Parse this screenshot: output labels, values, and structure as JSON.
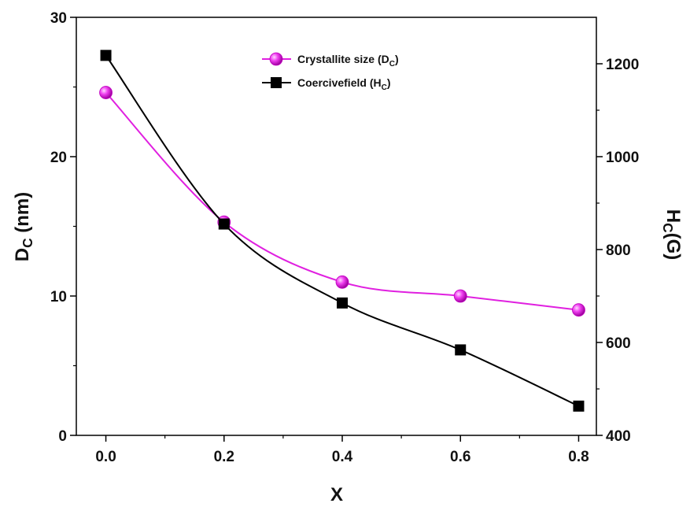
{
  "chart_data": {
    "type": "line",
    "x": [
      0.0,
      0.2,
      0.4,
      0.6,
      0.8
    ],
    "x_ticks": [
      "0.0",
      "0.2",
      "0.4",
      "0.6",
      "0.8"
    ],
    "xlim": [
      -0.05,
      0.83
    ],
    "xlabel": "X",
    "ylabel_left": {
      "main": "D",
      "sub": "C",
      "rest": " (nm)"
    },
    "ylabel_right": {
      "main": "H",
      "sub": "C",
      "rest": "(G)"
    },
    "ylim_left": [
      0,
      30
    ],
    "ylim_right": [
      400,
      1300
    ],
    "y_ticks_left": [
      0,
      10,
      20,
      30
    ],
    "y_ticks_right": [
      400,
      600,
      800,
      1000,
      1200
    ],
    "grid": false,
    "legend_position": "top-center",
    "series": [
      {
        "name": {
          "main": "Crystallite size (D",
          "sub": "C",
          "rest": ")"
        },
        "axis": "left",
        "marker": "circle",
        "color": "#e020e0",
        "values": [
          24.6,
          15.3,
          11.0,
          10.0,
          9.0
        ]
      },
      {
        "name": {
          "main": "Coercivefield (H",
          "sub": "C",
          "rest": ")"
        },
        "axis": "right",
        "marker": "square",
        "color": "#000000",
        "values": [
          1218,
          855,
          685,
          584,
          463
        ]
      }
    ]
  }
}
